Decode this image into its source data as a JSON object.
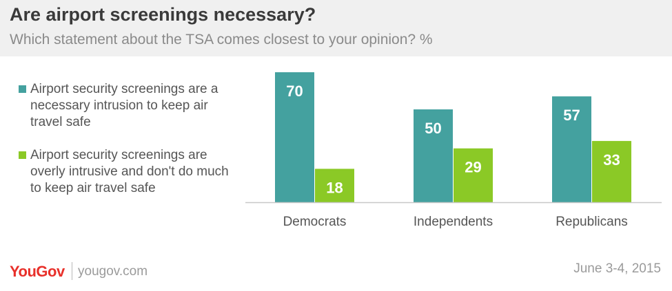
{
  "header": {
    "title": "Are airport screenings necessary?",
    "subtitle": "Which statement about the TSA comes closest to your opinion? %"
  },
  "footer": {
    "logo": "YouGov",
    "site": "yougov.com",
    "date": "June 3-4, 2015"
  },
  "colors": {
    "series_1": "#44a19f",
    "series_2": "#8bc926",
    "axis": "#c8c8c8",
    "label": "#555555"
  },
  "chart_data": {
    "type": "bar",
    "title": "Are airport screenings necessary?",
    "subtitle": "Which statement about the TSA comes closest to your opinion? %",
    "categories": [
      "Democrats",
      "Independents",
      "Republicans"
    ],
    "series": [
      {
        "name": "Airport security screenings are a necessary intrusion to keep air travel safe",
        "values": [
          70,
          50,
          57
        ],
        "data_labels": [
          "70",
          "50",
          "57"
        ]
      },
      {
        "name": "Airport security screenings are overly intrusive and don't do much to keep air travel safe",
        "values": [
          18,
          29,
          33
        ],
        "data_labels": [
          "18",
          "29",
          "33"
        ]
      }
    ],
    "ylim": [
      0,
      70
    ],
    "grid": false,
    "legend_position": "left"
  }
}
